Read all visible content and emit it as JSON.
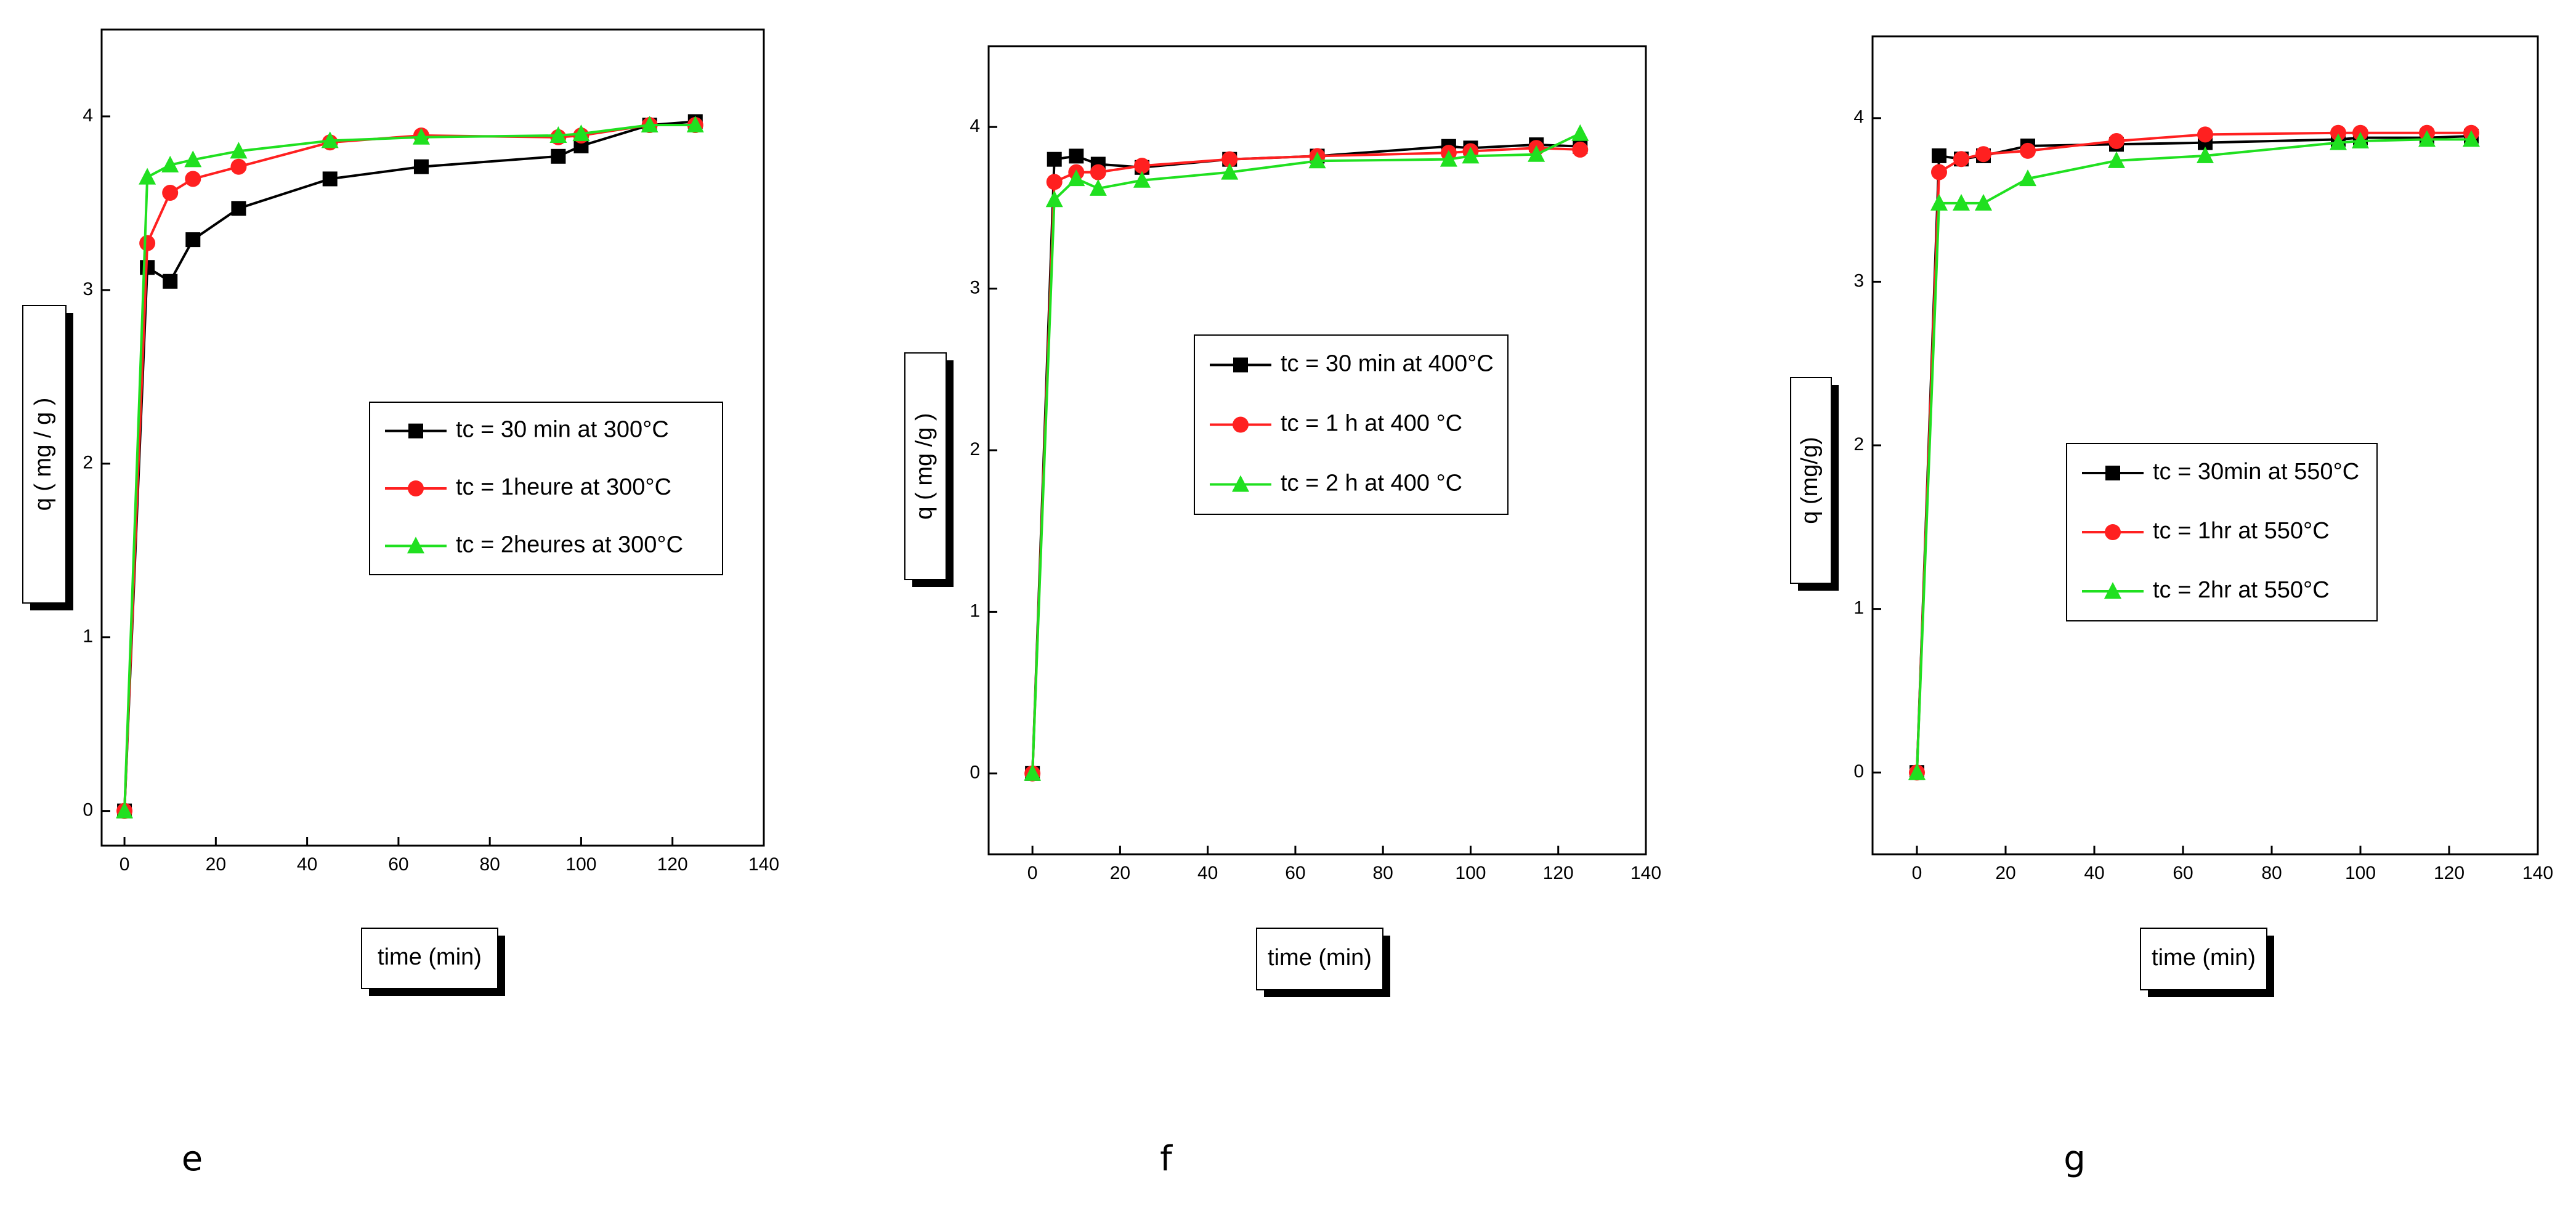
{
  "chart_data": [
    {
      "type": "line",
      "panel_label": "e",
      "x_label": "time  (min)",
      "y_label": "q  ( mg / g )",
      "x": [
        0,
        5,
        10,
        15,
        25,
        45,
        65,
        95,
        100,
        115,
        125
      ],
      "xlim": [
        -5,
        140
      ],
      "xticks": [
        0,
        20,
        40,
        60,
        80,
        100,
        120,
        140
      ],
      "ylim": [
        -0.2,
        4.5
      ],
      "yticks": [
        0,
        1,
        2,
        3,
        4
      ],
      "series": [
        {
          "name": "tc = 30 min at 300°C",
          "color": "#000000",
          "marker": "square",
          "values": [
            0,
            3.13,
            3.05,
            3.29,
            3.47,
            3.64,
            3.71,
            3.77,
            3.83,
            3.95,
            3.97
          ]
        },
        {
          "name": "tc = 1heure at 300°C",
          "color": "#ff2020",
          "marker": "circle",
          "values": [
            0,
            3.27,
            3.56,
            3.64,
            3.71,
            3.85,
            3.89,
            3.88,
            3.89,
            3.95,
            3.95
          ]
        },
        {
          "name": "tc = 2heures at 300°C",
          "color": "#20e020",
          "marker": "triangle",
          "values": [
            0,
            3.65,
            3.72,
            3.75,
            3.8,
            3.86,
            3.88,
            3.89,
            3.9,
            3.95,
            3.95
          ]
        }
      ]
    },
    {
      "type": "line",
      "panel_label": "f",
      "x_label": "time (min)",
      "y_label": "q  ( mg /g )",
      "x": [
        0,
        5,
        10,
        15,
        25,
        45,
        65,
        95,
        100,
        115,
        125
      ],
      "xlim": [
        -10,
        140
      ],
      "xticks": [
        0,
        20,
        40,
        60,
        80,
        100,
        120,
        140
      ],
      "ylim": [
        -0.5,
        4.5
      ],
      "yticks": [
        0,
        1,
        2,
        3,
        4
      ],
      "series": [
        {
          "name": "tc = 30 min at 400°C",
          "color": "#000000",
          "marker": "square",
          "values": [
            0,
            3.8,
            3.82,
            3.77,
            3.75,
            3.8,
            3.82,
            3.88,
            3.87,
            3.89,
            3.88
          ]
        },
        {
          "name": "tc = 1 h at 400 °C",
          "color": "#ff2020",
          "marker": "circle",
          "values": [
            0,
            3.66,
            3.72,
            3.72,
            3.76,
            3.8,
            3.82,
            3.84,
            3.85,
            3.87,
            3.86
          ]
        },
        {
          "name": "tc = 2 h at 400 °C",
          "color": "#20e020",
          "marker": "triangle",
          "values": [
            0,
            3.55,
            3.68,
            3.62,
            3.67,
            3.72,
            3.79,
            3.8,
            3.82,
            3.83,
            3.96
          ]
        }
      ]
    },
    {
      "type": "line",
      "panel_label": "g",
      "x_label": "time (min)",
      "y_label": "q (mg/g)",
      "x": [
        0,
        5,
        10,
        15,
        25,
        45,
        65,
        95,
        100,
        115,
        125
      ],
      "xlim": [
        -10,
        140
      ],
      "xticks": [
        0,
        20,
        40,
        60,
        80,
        100,
        120,
        140
      ],
      "ylim": [
        -0.5,
        4.5
      ],
      "yticks": [
        0,
        1,
        2,
        3,
        4
      ],
      "series": [
        {
          "name": "tc = 30min at 550°C",
          "color": "#000000",
          "marker": "square",
          "values": [
            0,
            3.77,
            3.75,
            3.77,
            3.83,
            3.84,
            3.85,
            3.87,
            3.88,
            3.88,
            3.89
          ]
        },
        {
          "name": "tc = 1hr at 550°C",
          "color": "#ff2020",
          "marker": "circle",
          "values": [
            0,
            3.67,
            3.75,
            3.78,
            3.8,
            3.86,
            3.9,
            3.91,
            3.91,
            3.91,
            3.91
          ]
        },
        {
          "name": "tc = 2hr at 550°C",
          "color": "#20e020",
          "marker": "triangle",
          "values": [
            0,
            3.48,
            3.48,
            3.48,
            3.63,
            3.74,
            3.77,
            3.85,
            3.86,
            3.87,
            3.87
          ]
        }
      ]
    }
  ]
}
